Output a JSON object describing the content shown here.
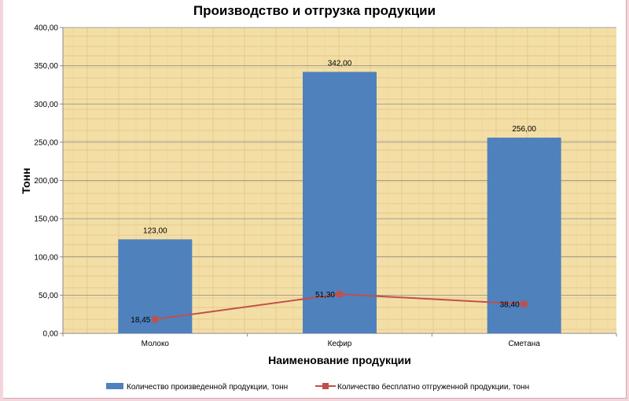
{
  "colors": {
    "bar": "#4f81bd",
    "line": "#c0504d",
    "plot_background": "#f3dfa6",
    "grid": "#8a8a8a"
  },
  "chart_data": {
    "type": "bar",
    "title": "Производство  и отгрузка  продукции",
    "xlabel": "Наименование  продукции",
    "ylabel": "Тонн",
    "categories": [
      "Молоко",
      "Кефир",
      "Сметана"
    ],
    "ylim": [
      0,
      400
    ],
    "yticks": [
      "0,00",
      "50,00",
      "100,00",
      "150,00",
      "200,00",
      "250,00",
      "300,00",
      "350,00",
      "400,00"
    ],
    "yticks_values": [
      0,
      50,
      100,
      150,
      200,
      250,
      300,
      350,
      400
    ],
    "grid": true,
    "legend_position": "bottom",
    "series": [
      {
        "name": "Количество произведенной продукции, тонн",
        "type": "bar",
        "values": [
          123,
          342,
          256
        ],
        "labels": [
          "123,00",
          "342,00",
          "256,00"
        ]
      },
      {
        "name": "Количество бесплатно отгруженной продукции, тонн",
        "type": "line",
        "values": [
          18.45,
          51.3,
          38.4
        ],
        "labels": [
          "18,45",
          "51,30",
          "38,40"
        ]
      }
    ]
  }
}
